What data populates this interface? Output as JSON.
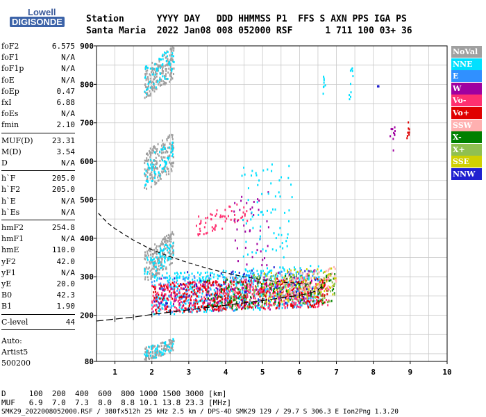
{
  "logo": {
    "line1": "Lowell",
    "line2": "DIGISONDE"
  },
  "header": {
    "line1": "Station      YYYY DAY   DDD HHMMSS P1  FFS S AXN PPS IGA PS",
    "line2": "Santa Maria  2022 Jan08 008 052000 RSF      1 711 100 03+ 36"
  },
  "params_groups": [
    [
      {
        "label": "foF2",
        "value": "6.575"
      },
      {
        "label": "foF1",
        "value": "N/A"
      },
      {
        "label": "foF1p",
        "value": "N/A"
      },
      {
        "label": "foE",
        "value": "N/A"
      },
      {
        "label": "foEp",
        "value": "0.47"
      },
      {
        "label": "fxI",
        "value": "6.88"
      },
      {
        "label": "foEs",
        "value": "N/A"
      },
      {
        "label": "fmin",
        "value": "2.10"
      }
    ],
    [
      {
        "label": "MUF(D)",
        "value": "23.31"
      },
      {
        "label": "M(D)",
        "value": "3.54"
      },
      {
        "label": "D",
        "value": "N/A"
      }
    ],
    [
      {
        "label": "h`F",
        "value": "205.0"
      },
      {
        "label": "h`F2",
        "value": "205.0"
      },
      {
        "label": "h`E",
        "value": "N/A"
      },
      {
        "label": "h`Es",
        "value": "N/A"
      }
    ],
    [
      {
        "label": "hmF2",
        "value": "254.8"
      },
      {
        "label": "hmF1",
        "value": "N/A"
      },
      {
        "label": "hmE",
        "value": "110.0"
      },
      {
        "label": "yF2",
        "value": "42.0"
      },
      {
        "label": "yF1",
        "value": "N/A"
      },
      {
        "label": "yE",
        "value": "20.0"
      },
      {
        "label": "B0",
        "value": "42.3"
      },
      {
        "label": "B1",
        "value": "1.90"
      }
    ],
    [
      {
        "label": "C-level",
        "value": "44"
      }
    ]
  ],
  "auto": {
    "line1": "Auto:",
    "line2": "Artist5",
    "line3": "500200"
  },
  "legend": [
    {
      "label": "NoVal",
      "bg": "#a0a0a0",
      "fg": "#ffffff"
    },
    {
      "label": "NNE",
      "bg": "#00e0ff",
      "fg": "#ffffff"
    },
    {
      "label": "E",
      "bg": "#3090ff",
      "fg": "#ffffff"
    },
    {
      "label": "W",
      "bg": "#a000a0",
      "fg": "#ffffff"
    },
    {
      "label": "Vo-",
      "bg": "#ff3070",
      "fg": "#ffffff"
    },
    {
      "label": "Vo+",
      "bg": "#e00000",
      "fg": "#ffffff"
    },
    {
      "label": "SSW",
      "bg": "#ffb0b0",
      "fg": "#ffffff"
    },
    {
      "label": "X-",
      "bg": "#008000",
      "fg": "#ffffff"
    },
    {
      "label": "X+",
      "bg": "#90c050",
      "fg": "#ffffff"
    },
    {
      "label": "SSE",
      "bg": "#d0d000",
      "fg": "#ffffff"
    },
    {
      "label": "NNW",
      "bg": "#2020d0",
      "fg": "#ffffff"
    }
  ],
  "footer": {
    "line1": "D     100  200  400  600  800 1000 1500 3000 [km]",
    "line2": "MUF   6.9  7.0  7.3  8.0  8.8 10.1 13.8 23.3 [MHz]",
    "line3": "SMK29_2022008052000.RSF / 380fx512h 25 kHz 2.5 km / DPS-4D SMK29 129 / 29.7 S 306.3 E Ion2Png 1.3.20"
  },
  "chart_data": {
    "type": "scatter",
    "xlim": [
      0.5,
      10
    ],
    "ylim": [
      80,
      900
    ],
    "x_ticks": [
      1,
      2,
      3,
      4,
      5,
      6,
      7,
      8,
      9,
      10
    ],
    "y_ticks": [
      80,
      200,
      300,
      400,
      500,
      600,
      700,
      800,
      900
    ],
    "grid": true,
    "trace_lower": {
      "x": [
        0.5,
        1.0,
        1.5,
        2.0,
        2.5,
        3.0,
        3.5,
        4.0,
        4.5,
        5.0,
        5.5,
        6.0,
        6.3,
        6.5,
        6.6
      ],
      "y": [
        185,
        190,
        195,
        202,
        208,
        214,
        220,
        226,
        232,
        238,
        245,
        252,
        258,
        265,
        275
      ]
    },
    "trace_upper_dashed": {
      "x": [
        0.55,
        0.8,
        1.0,
        1.5,
        2.0,
        2.5,
        3.0,
        3.5,
        4.0,
        4.5,
        5.0,
        5.5,
        6.0,
        6.3
      ],
      "y": [
        465,
        440,
        425,
        395,
        370,
        352,
        336,
        322,
        310,
        300,
        292,
        286,
        283,
        280
      ]
    },
    "clusters": [
      {
        "color": "#a0a0a0",
        "x": [
          1.8,
          2.6
        ],
        "y": [
          760,
          900
        ],
        "n": 200,
        "slope": 55
      },
      {
        "color": "#a0a0a0",
        "x": [
          1.8,
          2.6
        ],
        "y": [
          520,
          680
        ],
        "n": 200,
        "slope": 55
      },
      {
        "color": "#a0a0a0",
        "x": [
          1.8,
          2.6
        ],
        "y": [
          280,
          420
        ],
        "n": 200,
        "slope": 55
      },
      {
        "color": "#a0a0a0",
        "x": [
          1.8,
          2.6
        ],
        "y": [
          80,
          140
        ],
        "n": 120,
        "slope": 25
      },
      {
        "color": "#00e0ff",
        "x": [
          1.8,
          2.6
        ],
        "y": [
          770,
          900
        ],
        "n": 60,
        "slope": 55
      },
      {
        "color": "#00e0ff",
        "x": [
          1.8,
          2.6
        ],
        "y": [
          530,
          660
        ],
        "n": 60,
        "slope": 55
      },
      {
        "color": "#00e0ff",
        "x": [
          1.8,
          2.6
        ],
        "y": [
          290,
          400
        ],
        "n": 60,
        "slope": 55
      },
      {
        "color": "#00e0ff",
        "x": [
          1.8,
          2.6
        ],
        "y": [
          80,
          140
        ],
        "n": 40,
        "slope": 25
      },
      {
        "color": "#00e0ff",
        "x": [
          2.0,
          6.6
        ],
        "y": [
          200,
          330
        ],
        "n": 550,
        "slope": 22
      },
      {
        "color": "#3090ff",
        "x": [
          2.0,
          6.5
        ],
        "y": [
          200,
          320
        ],
        "n": 250,
        "slope": 22
      },
      {
        "color": "#ff3070",
        "x": [
          2.0,
          6.8
        ],
        "y": [
          205,
          300
        ],
        "n": 500,
        "slope": 17
      },
      {
        "color": "#e00000",
        "x": [
          2.0,
          6.8
        ],
        "y": [
          205,
          300
        ],
        "n": 350,
        "slope": 17
      },
      {
        "color": "#a000a0",
        "x": [
          2.0,
          6.5
        ],
        "y": [
          200,
          320
        ],
        "n": 100,
        "slope": 20
      },
      {
        "color": "#008000",
        "x": [
          3.5,
          7.0
        ],
        "y": [
          210,
          310
        ],
        "n": 120,
        "slope": 20
      },
      {
        "color": "#90c050",
        "x": [
          4.0,
          7.0
        ],
        "y": [
          215,
          320
        ],
        "n": 120,
        "slope": 20
      },
      {
        "color": "#d0d000",
        "x": [
          5.0,
          7.0
        ],
        "y": [
          230,
          330
        ],
        "n": 100,
        "slope": 20
      },
      {
        "color": "#ffb0b0",
        "x": [
          5.5,
          7.0
        ],
        "y": [
          250,
          330
        ],
        "n": 80,
        "slope": 20
      },
      {
        "color": "#2020d0",
        "x": [
          2.0,
          6.5
        ],
        "y": [
          210,
          330
        ],
        "n": 50,
        "slope": 20
      },
      {
        "color": "#ff3070",
        "x": [
          3.2,
          4.6
        ],
        "y": [
          400,
          500
        ],
        "n": 60,
        "slope": 45
      },
      {
        "color": "#a000a0",
        "x": [
          4.2,
          5.2
        ],
        "y": [
          320,
          520
        ],
        "n": 40,
        "slope": 0
      },
      {
        "color": "#00e0ff",
        "x": [
          4.4,
          5.8
        ],
        "y": [
          350,
          600
        ],
        "n": 70,
        "slope": 0
      },
      {
        "color": "#00e0ff",
        "x": [
          6.6,
          6.7
        ],
        "y": [
          750,
          820
        ],
        "n": 8,
        "slope": 0
      },
      {
        "color": "#00e0ff",
        "x": [
          7.35,
          7.45
        ],
        "y": [
          760,
          860
        ],
        "n": 10,
        "slope": 0
      },
      {
        "color": "#a000a0",
        "x": [
          8.45,
          8.6
        ],
        "y": [
          620,
          690
        ],
        "n": 10,
        "slope": 0
      },
      {
        "color": "#e00000",
        "x": [
          8.9,
          9.0
        ],
        "y": [
          660,
          710
        ],
        "n": 8,
        "slope": 0
      },
      {
        "color": "#2020d0",
        "x": [
          8.1,
          8.2
        ],
        "y": [
          790,
          800
        ],
        "n": 3,
        "slope": 0
      }
    ]
  }
}
